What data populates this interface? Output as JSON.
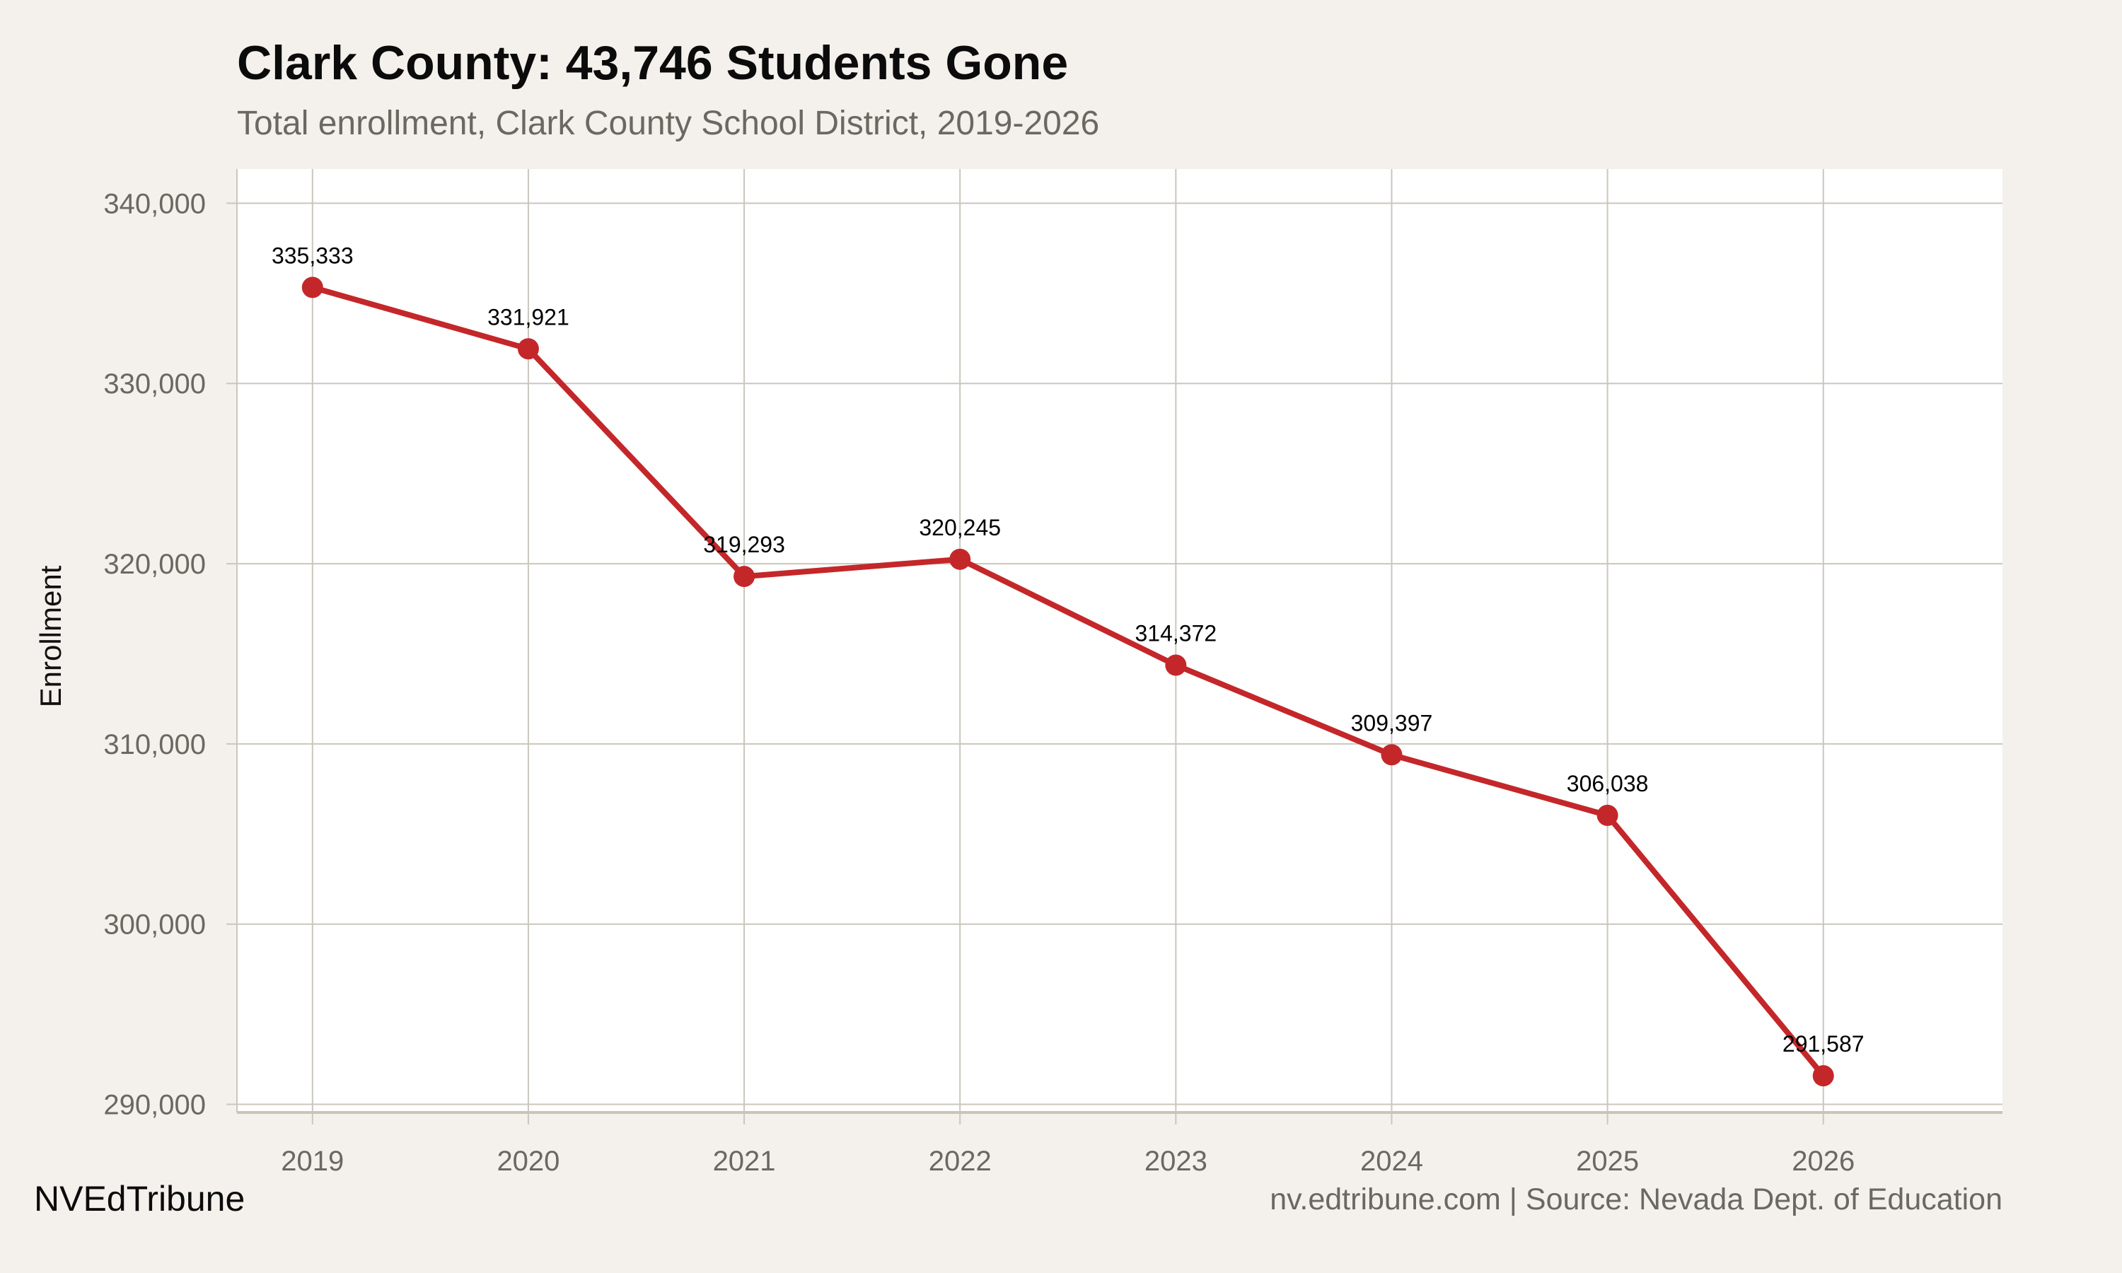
{
  "chart_data": {
    "type": "line",
    "title": "Clark County: 43,746 Students Gone",
    "subtitle": "Total enrollment, Clark County School District, 2019-2026",
    "xlabel": "",
    "ylabel": "Enrollment",
    "x": [
      2019,
      2020,
      2021,
      2022,
      2023,
      2024,
      2025,
      2026
    ],
    "series": [
      {
        "values": [
          335333,
          331921,
          319293,
          320245,
          314372,
          309397,
          306038,
          291587
        ],
        "labels": [
          "335,333",
          "331,921",
          "319,293",
          "320,245",
          "314,372",
          "309,397",
          "306,038",
          "291,587"
        ]
      }
    ],
    "xlim": [
      2018.65,
      2026.83
    ],
    "ylim": [
      289550,
      341900
    ],
    "yticks": [
      290000,
      300000,
      310000,
      320000,
      330000,
      340000
    ],
    "ytick_labels": [
      "290,000",
      "300,000",
      "310,000",
      "320,000",
      "330,000",
      "340,000"
    ],
    "xtick_labels": [
      "2019",
      "2020",
      "2021",
      "2022",
      "2023",
      "2024",
      "2025",
      "2026"
    ],
    "grid": true,
    "legend": "none",
    "colors": {
      "line": "#c4272a",
      "background": "#f4f1ec",
      "panel": "#ffffff",
      "grid": "#cbc6bd"
    }
  },
  "footer": {
    "brand": "NVEdTribune",
    "source": "nv.edtribune.com | Source: Nevada Dept. of Education"
  }
}
